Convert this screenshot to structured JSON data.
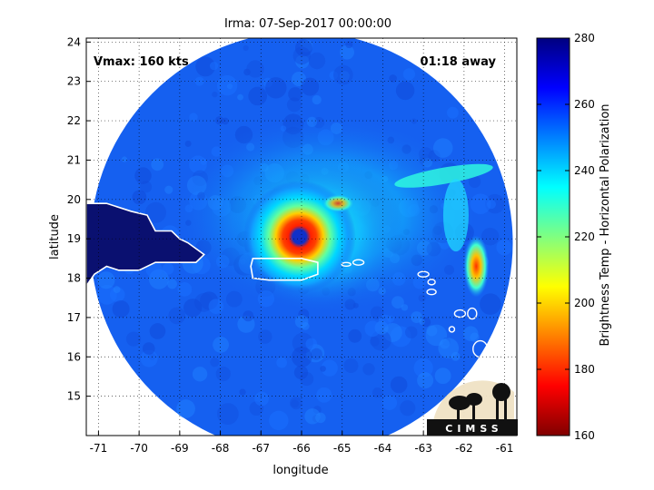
{
  "title": "Irma: 07-Sep-2017 00:00:00",
  "annotations": {
    "vmax": "Vmax: 160 kts",
    "time_away": "01:18 away"
  },
  "axes": {
    "xlabel": "longitude",
    "ylabel": "latitude",
    "xticks": [
      -71,
      -70,
      -69,
      -68,
      -67,
      -66,
      -65,
      -64,
      -63,
      -62,
      -61
    ],
    "yticks": [
      15,
      16,
      17,
      18,
      19,
      20,
      21,
      22,
      23,
      24
    ],
    "xlim": [
      -71.3,
      -60.7
    ],
    "ylim": [
      14.0,
      24.1
    ],
    "grid": true,
    "grid_style": "dotted"
  },
  "colorbar": {
    "label": "Brightness Temp - Horizontal Polarization",
    "ticks": [
      160,
      180,
      200,
      220,
      240,
      260,
      280
    ],
    "range": [
      160,
      280
    ],
    "colormap": "jet"
  },
  "storm": {
    "center_lon": -66.05,
    "center_lat": 19.05,
    "eye_temp": 270,
    "eyewall_temp": 170,
    "background_temp": 260
  },
  "swath": {
    "center_lon": -66.0,
    "center_lat": 18.9,
    "radius_deg_lon": 5.2
  },
  "logo": {
    "text": "CIMSS"
  },
  "colors": {
    "coastline": "#ffffff",
    "land_fill": "#0a1070",
    "frame": "#000000"
  }
}
